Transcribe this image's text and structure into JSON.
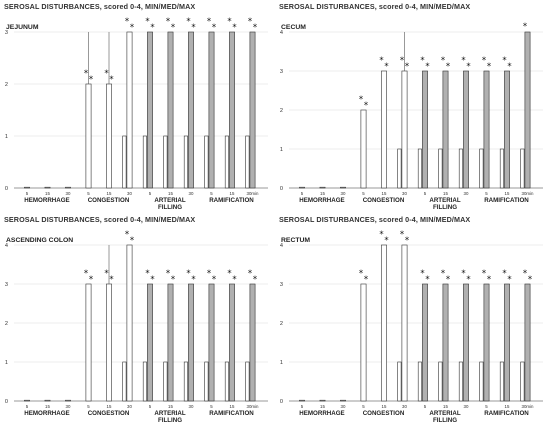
{
  "chart_data": [
    {
      "type": "bar",
      "title": "SEROSAL DISTURBANCES, scored 0-4, MIN/MED/MAX",
      "panel_label": "JEJUNUM",
      "ylim": [
        0,
        3
      ],
      "yticks": [
        "0",
        "1",
        "2",
        "3"
      ],
      "groups": [
        {
          "label": [
            "HEMORRHAGE"
          ],
          "times": [
            "5",
            "15",
            "30"
          ],
          "bars": [
            {
              "min": 0,
              "med": 0,
              "max": 0
            },
            {
              "min": 0,
              "med": 0,
              "max": 0
            },
            {
              "min": 0,
              "med": 0,
              "max": 0
            }
          ]
        },
        {
          "label": [
            "CONGESTION"
          ],
          "times": [
            "5",
            "15",
            "30"
          ],
          "bars": [
            {
              "min": 0,
              "med": 2,
              "max": 3,
              "star": "**"
            },
            {
              "min": 0,
              "med": 2,
              "max": 3,
              "star": "**"
            },
            {
              "min": 1,
              "med": 3,
              "max": 3,
              "star": "**"
            }
          ]
        },
        {
          "label": [
            "ARTERIAL",
            "FILLING"
          ],
          "times": [
            "5",
            "15",
            "30"
          ],
          "bars": [
            {
              "min": 1,
              "med": 3,
              "max": 3,
              "star": "**"
            },
            {
              "min": 1,
              "med": 3,
              "max": 3,
              "star": "**"
            },
            {
              "min": 1,
              "med": 3,
              "max": 3,
              "star": "**"
            }
          ]
        },
        {
          "label": [
            "RAMIFICATION"
          ],
          "times": [
            "5",
            "15",
            "30min"
          ],
          "bars": [
            {
              "min": 1,
              "med": 3,
              "max": 3,
              "star": "**"
            },
            {
              "min": 1,
              "med": 3,
              "max": 3,
              "star": "**"
            },
            {
              "min": 1,
              "med": 3,
              "max": 3,
              "star": "**"
            }
          ]
        }
      ]
    },
    {
      "type": "bar",
      "title": "SEROSAL DISTURBANCES, scored 0-4, MIN/MED/MAX",
      "panel_label": "CECUM",
      "ylim": [
        0,
        4
      ],
      "yticks": [
        "0",
        "1",
        "2",
        "3",
        "4"
      ],
      "groups": [
        {
          "label": [
            "HEMORRHAGE"
          ],
          "times": [
            "5",
            "15",
            "30"
          ],
          "bars": [
            {
              "min": 0,
              "med": 0,
              "max": 0
            },
            {
              "min": 0,
              "med": 0,
              "max": 0
            },
            {
              "min": 0,
              "med": 0,
              "max": 0
            }
          ]
        },
        {
          "label": [
            "CONGESTION"
          ],
          "times": [
            "5",
            "15",
            "30"
          ],
          "bars": [
            {
              "min": 0,
              "med": 2,
              "max": 2,
              "star": "**"
            },
            {
              "min": 0,
              "med": 3,
              "max": 3,
              "star": "**"
            },
            {
              "min": 1,
              "med": 3,
              "max": 4,
              "star": "**"
            }
          ]
        },
        {
          "label": [
            "ARTERIAL",
            "FILLING"
          ],
          "times": [
            "5",
            "15",
            "30"
          ],
          "bars": [
            {
              "min": 1,
              "med": 3,
              "max": 3,
              "star": "**"
            },
            {
              "min": 1,
              "med": 3,
              "max": 3,
              "star": "**"
            },
            {
              "min": 1,
              "med": 3,
              "max": 3,
              "star": "**"
            }
          ]
        },
        {
          "label": [
            "RAMIFICATION"
          ],
          "times": [
            "5",
            "15",
            "30min"
          ],
          "bars": [
            {
              "min": 1,
              "med": 3,
              "max": 3,
              "star": "**"
            },
            {
              "min": 1,
              "med": 3,
              "max": 3,
              "star": "**"
            },
            {
              "min": 1,
              "med": 4,
              "max": 4,
              "star": "*"
            }
          ]
        }
      ]
    },
    {
      "type": "bar",
      "title": "SEROSAL DISTURBANCES, scored 0-4, MIN/MED/MAX",
      "panel_label": "ASCENDING COLON",
      "ylim": [
        0,
        4
      ],
      "yticks": [
        "0",
        "1",
        "2",
        "3",
        "4"
      ],
      "groups": [
        {
          "label": [
            "HEMORRHAGE"
          ],
          "times": [
            "5",
            "15",
            "30"
          ],
          "bars": [
            {
              "min": 0,
              "med": 0,
              "max": 0
            },
            {
              "min": 0,
              "med": 0,
              "max": 0
            },
            {
              "min": 0,
              "med": 0,
              "max": 0
            }
          ]
        },
        {
          "label": [
            "CONGESTION"
          ],
          "times": [
            "5",
            "15",
            "30"
          ],
          "bars": [
            {
              "min": 0,
              "med": 3,
              "max": 3,
              "star": "**"
            },
            {
              "min": 0,
              "med": 3,
              "max": 4,
              "star": "**"
            },
            {
              "min": 1,
              "med": 4,
              "max": 4,
              "star": "**"
            }
          ]
        },
        {
          "label": [
            "ARTERIAL",
            "FILLING"
          ],
          "times": [
            "5",
            "15",
            "30"
          ],
          "bars": [
            {
              "min": 1,
              "med": 3,
              "max": 3,
              "star": "**"
            },
            {
              "min": 1,
              "med": 3,
              "max": 3,
              "star": "**"
            },
            {
              "min": 1,
              "med": 3,
              "max": 3,
              "star": "**"
            }
          ]
        },
        {
          "label": [
            "RAMIFICATION"
          ],
          "times": [
            "5",
            "15",
            "30min"
          ],
          "bars": [
            {
              "min": 1,
              "med": 3,
              "max": 3,
              "star": "**"
            },
            {
              "min": 1,
              "med": 3,
              "max": 3,
              "star": "**"
            },
            {
              "min": 1,
              "med": 3,
              "max": 3,
              "star": "**"
            }
          ]
        }
      ]
    },
    {
      "type": "bar",
      "title": "SEROSAL DISTURBANCES, scored 0-4, MIN/MED/MAX",
      "panel_label": "RECTUM",
      "ylim": [
        0,
        4
      ],
      "yticks": [
        "0",
        "1",
        "2",
        "3",
        "4"
      ],
      "groups": [
        {
          "label": [
            "HEMORRHAGE"
          ],
          "times": [
            "5",
            "15",
            "30"
          ],
          "bars": [
            {
              "min": 0,
              "med": 0,
              "max": 0
            },
            {
              "min": 0,
              "med": 0,
              "max": 0
            },
            {
              "min": 0,
              "med": 0,
              "max": 0
            }
          ]
        },
        {
          "label": [
            "CONGESTION"
          ],
          "times": [
            "5",
            "15",
            "30"
          ],
          "bars": [
            {
              "min": 0,
              "med": 3,
              "max": 3,
              "star": "**"
            },
            {
              "min": 0,
              "med": 4,
              "max": 4,
              "star": "**"
            },
            {
              "min": 1,
              "med": 4,
              "max": 4,
              "star": "**"
            }
          ]
        },
        {
          "label": [
            "ARTERIAL",
            "FILLING"
          ],
          "times": [
            "5",
            "15",
            "30"
          ],
          "bars": [
            {
              "min": 1,
              "med": 3,
              "max": 3,
              "star": "**"
            },
            {
              "min": 1,
              "med": 3,
              "max": 3,
              "star": "**"
            },
            {
              "min": 1,
              "med": 3,
              "max": 3,
              "star": "**"
            }
          ]
        },
        {
          "label": [
            "RAMIFICATION"
          ],
          "times": [
            "5",
            "15",
            "30min"
          ],
          "bars": [
            {
              "min": 1,
              "med": 3,
              "max": 3,
              "star": "**"
            },
            {
              "min": 1,
              "med": 3,
              "max": 3,
              "star": "**"
            },
            {
              "min": 1,
              "med": 3,
              "max": 3,
              "star": "**"
            }
          ]
        }
      ]
    }
  ],
  "colors": {
    "control_bar": "#ffffff",
    "ischemic_bar": "#b0b0b0",
    "bar_outline": "#333333",
    "grid": "#dcdcdc"
  }
}
